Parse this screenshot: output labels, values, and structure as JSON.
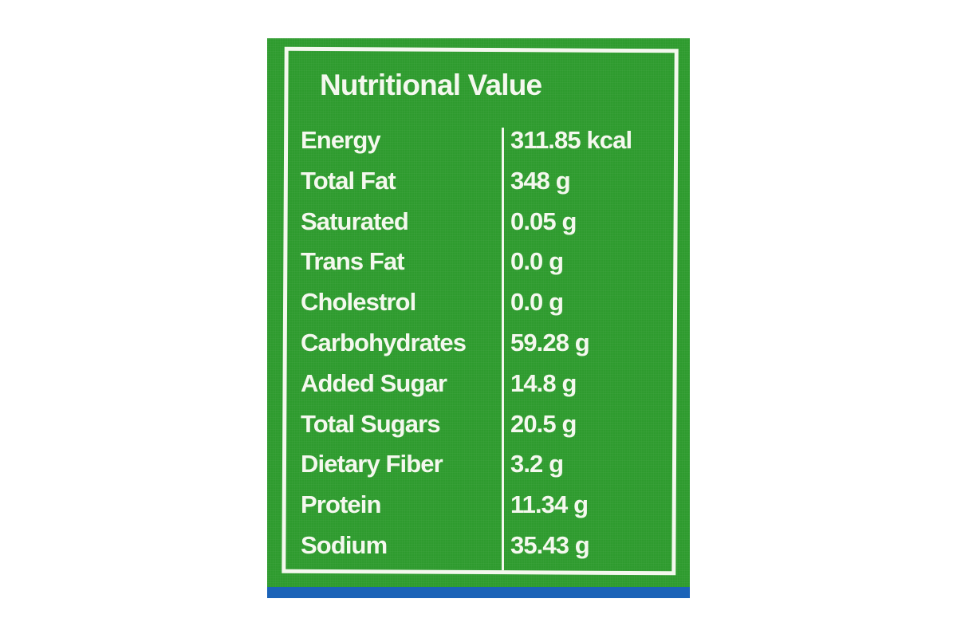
{
  "label": {
    "title": "Nutritional Value",
    "colors": {
      "panel": "#2e9b2e",
      "text": "#f4f8ee",
      "strip": "#1b63b8"
    },
    "rows": [
      {
        "name": "Energy",
        "value": "311.85 kcal"
      },
      {
        "name": "Total Fat",
        "value": "348 g"
      },
      {
        "name": "Saturated",
        "value": "0.05 g"
      },
      {
        "name": "Trans Fat",
        "value": "0.0 g"
      },
      {
        "name": "Cholestrol",
        "value": "0.0 g"
      },
      {
        "name": "Carbohydrates",
        "value": "59.28 g"
      },
      {
        "name": "Added Sugar",
        "value": "14.8 g"
      },
      {
        "name": "Total Sugars",
        "value": "20.5 g"
      },
      {
        "name": "Dietary Fiber",
        "value": "3.2 g"
      },
      {
        "name": "Protein",
        "value": "11.34 g"
      },
      {
        "name": "Sodium",
        "value": "35.43 g"
      }
    ]
  }
}
